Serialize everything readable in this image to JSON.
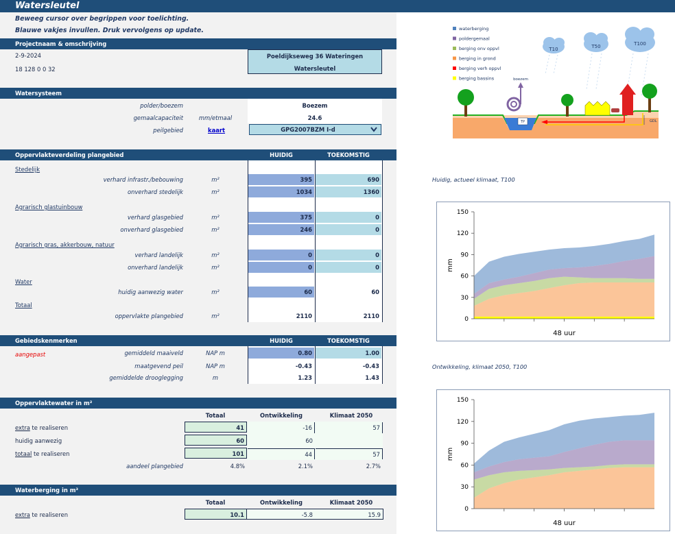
{
  "app": {
    "title": "Watersleutel",
    "instruction1": "Beweeg cursor over begrippen voor toelichting.",
    "instruction2": "Blauwe vakjes invullen. Druk vervolgens op update."
  },
  "project": {
    "header": "Projectnaam & omschrijving",
    "date": "2-9-2024",
    "code": "18 128 0 0 32",
    "name": "Poeldijkseweg 36 Wateringen",
    "subtitle": "Watersleutel"
  },
  "watersysteem": {
    "header": "Watersysteem",
    "polder_label": "polder/boezem",
    "polder_value": "Boezem",
    "gemaal_label": "gemaalcapaciteit",
    "gemaal_unit": "mm/etmaal",
    "gemaal_value": "24.6",
    "peil_label": "peilgebied",
    "peil_link": "kaart",
    "peil_value": "GPG2007BZM I-d"
  },
  "opp": {
    "header": "Oppervlakteverdeling plangebied",
    "col1": "HUIDIG",
    "col2": "TOEKOMSTIG",
    "cat_stedelijk": "Stedelijk",
    "cat_glas": "Agrarisch glastuinbouw",
    "cat_agr": "Agrarisch gras, akkerbouw, natuur",
    "cat_water": "Water",
    "cat_totaal": "Totaal",
    "rows": [
      {
        "label": "verhard infrastr./bebouwing",
        "unit": "m²",
        "h": "395",
        "t": "690"
      },
      {
        "label": "onverhard stedelijk",
        "unit": "m²",
        "h": "1034",
        "t": "1360"
      },
      {
        "label": "verhard glasgebied",
        "unit": "m²",
        "h": "375",
        "t": "0"
      },
      {
        "label": "onverhard glasgebied",
        "unit": "m²",
        "h": "246",
        "t": "0"
      },
      {
        "label": "verhard landelijk",
        "unit": "m²",
        "h": "0",
        "t": "0"
      },
      {
        "label": "onverhard landelijk",
        "unit": "m²",
        "h": "0",
        "t": "0"
      },
      {
        "label": "huidig aanwezig water",
        "unit": "m²",
        "h": "60",
        "t": "60"
      },
      {
        "label": "oppervlakte plangebied",
        "unit": "m²",
        "h": "2110",
        "t": "2110"
      }
    ]
  },
  "gebied": {
    "header": "Gebiedskenmerken",
    "col1": "HUIDIG",
    "col2": "TOEKOMSTIG",
    "note": "aangepast",
    "rows": [
      {
        "label": "gemiddeld maaiveld",
        "unit": "NAP m",
        "h": "0.80",
        "t": "1.00"
      },
      {
        "label": "maatgevend peil",
        "unit": "NAP m",
        "h": "-0.43",
        "t": "-0.43"
      },
      {
        "label": "gemiddelde drooglegging",
        "unit": "m",
        "h": "1.23",
        "t": "1.43"
      }
    ]
  },
  "oppwater": {
    "header": "Oppervlaktewater in m²",
    "col_totaal": "Totaal",
    "col_ontw": "Ontwikkeling",
    "col_klim": "Klimaat 2050",
    "extra_link": "extra",
    "extra_rest": " te realiseren",
    "extra": {
      "t": "41",
      "o": "-16",
      "k": "57"
    },
    "huidig_label": "huidig aanwezig",
    "huidig": {
      "t": "60",
      "o": "60"
    },
    "totaal_link": "totaal",
    "totaal_rest": " te realiseren",
    "totaal": {
      "t": "101",
      "o": "44",
      "k": "57"
    },
    "aandeel_label": "aandeel plangebied",
    "aandeel": {
      "t": "4.8%",
      "o": "2.1%",
      "k": "2.7%"
    }
  },
  "berging": {
    "header": "Waterberging in m³",
    "col_totaal": "Totaal",
    "col_ontw": "Ontwikkeling",
    "col_klim": "Klimaat 2050",
    "extra_link": "extra",
    "extra_rest": " te realiseren",
    "extra": {
      "t": "10.1",
      "o": "-5.8",
      "k": "15.9"
    }
  },
  "legend": {
    "items": [
      {
        "label": "waterberging",
        "color": "#4f81bd"
      },
      {
        "label": "poldergemaal",
        "color": "#8064a2"
      },
      {
        "label": "berging onv oppvl",
        "color": "#9bbb59"
      },
      {
        "label": "berging in grond",
        "color": "#f79646"
      },
      {
        "label": "berging verh oppvl",
        "color": "#ff0000"
      },
      {
        "label": "berging bassins",
        "color": "#ffff00"
      }
    ],
    "clouds": [
      "T10",
      "T50",
      "T100"
    ],
    "boezem": "boezem",
    "tp": "TP",
    "gdl": "GDL"
  },
  "chart_data": [
    {
      "type": "area",
      "title": "Huidig, actueel klimaat, T100",
      "xlabel": "48 uur",
      "ylabel": "mm",
      "ylim": [
        0,
        150
      ],
      "yticks": [
        0,
        30,
        60,
        90,
        120,
        150
      ],
      "x": [
        0,
        1,
        2,
        3,
        4,
        5,
        6,
        7,
        8,
        9,
        10,
        11,
        12
      ],
      "series": [
        {
          "color": "#ffff00",
          "values": [
            3,
            3,
            3,
            3,
            3,
            3,
            3,
            3,
            3,
            3,
            3,
            3,
            3
          ]
        },
        {
          "color": "#f79646",
          "values": [
            15,
            25,
            30,
            33,
            36,
            40,
            44,
            47,
            48,
            48,
            48,
            48,
            48
          ]
        },
        {
          "color": "#9bbb59",
          "values": [
            10,
            14,
            14,
            14,
            14,
            14,
            12,
            8,
            6,
            6,
            6,
            5,
            5
          ]
        },
        {
          "color": "#8064a2",
          "values": [
            7,
            8,
            8,
            9,
            11,
            12,
            12,
            14,
            17,
            20,
            24,
            28,
            32
          ]
        },
        {
          "color": "#4f81bd",
          "values": [
            25,
            30,
            32,
            32,
            30,
            28,
            28,
            28,
            28,
            28,
            28,
            28,
            30
          ]
        }
      ]
    },
    {
      "type": "area",
      "title": "Ontwikkeling, klimaat 2050, T100",
      "xlabel": "48 uur",
      "ylabel": "mm",
      "ylim": [
        0,
        150
      ],
      "yticks": [
        0,
        30,
        60,
        90,
        120,
        150
      ],
      "x": [
        0,
        1,
        2,
        3,
        4,
        5,
        6,
        7,
        8,
        9,
        10,
        11,
        12
      ],
      "series": [
        {
          "color": "#ffff00",
          "values": [
            0,
            0,
            0,
            0,
            0,
            0,
            0,
            0,
            0,
            0,
            0,
            0,
            0
          ]
        },
        {
          "color": "#f79646",
          "values": [
            15,
            28,
            35,
            40,
            43,
            46,
            50,
            52,
            54,
            56,
            57,
            57,
            57
          ]
        },
        {
          "color": "#9bbb59",
          "values": [
            25,
            18,
            15,
            12,
            10,
            8,
            6,
            5,
            4,
            4,
            4,
            4,
            4
          ]
        },
        {
          "color": "#8064a2",
          "values": [
            10,
            12,
            14,
            16,
            17,
            18,
            22,
            26,
            30,
            32,
            33,
            33,
            33
          ]
        },
        {
          "color": "#4f81bd",
          "values": [
            12,
            22,
            28,
            30,
            33,
            36,
            38,
            38,
            36,
            34,
            34,
            35,
            38
          ]
        }
      ]
    }
  ]
}
